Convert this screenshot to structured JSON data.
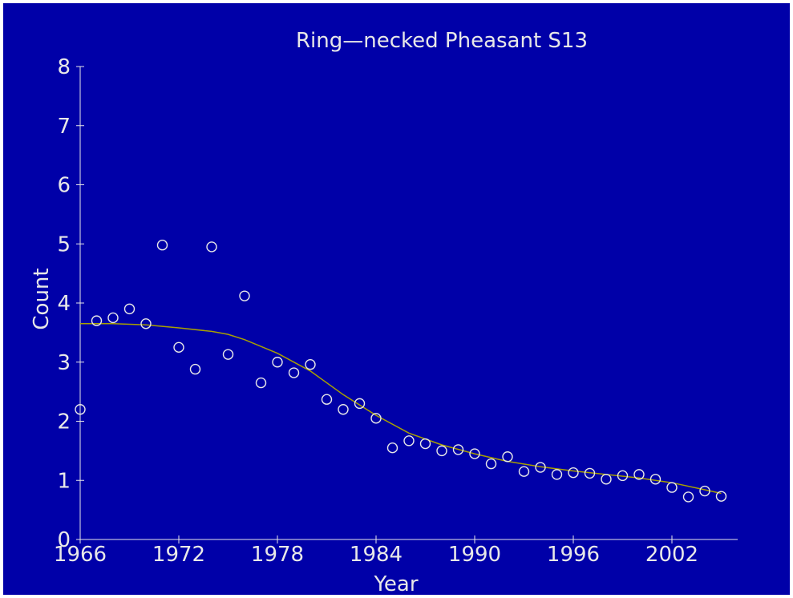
{
  "colors": {
    "background": "#0000a8",
    "foreground": "#e8e8e8",
    "trend": "#a8a000"
  },
  "chart_data": {
    "type": "scatter",
    "title": "Ring—necked Pheasant S13",
    "xlabel": "Year",
    "ylabel": "Count",
    "xlim": [
      1966,
      2006
    ],
    "ylim": [
      0,
      8
    ],
    "x_ticks": [
      1966,
      1972,
      1978,
      1984,
      1990,
      1996,
      2002
    ],
    "y_ticks": [
      0,
      1,
      2,
      3,
      4,
      5,
      6,
      7,
      8
    ],
    "grid": false,
    "legend": "none",
    "series": [
      {
        "type": "scatter",
        "marker": "open-circle",
        "x": [
          1966,
          1967,
          1968,
          1969,
          1970,
          1971,
          1972,
          1973,
          1974,
          1975,
          1976,
          1977,
          1978,
          1979,
          1980,
          1981,
          1982,
          1983,
          1984,
          1985,
          1986,
          1987,
          1988,
          1989,
          1990,
          1991,
          1992,
          1993,
          1994,
          1995,
          1996,
          1997,
          1998,
          1999,
          2000,
          2001,
          2002,
          2003,
          2004,
          2005
        ],
        "y": [
          2.2,
          3.7,
          3.75,
          3.9,
          3.65,
          4.98,
          3.25,
          2.88,
          4.95,
          3.13,
          4.12,
          2.65,
          3.0,
          2.82,
          2.96,
          2.37,
          2.2,
          2.3,
          2.05,
          1.55,
          1.67,
          1.62,
          1.5,
          1.52,
          1.45,
          1.28,
          1.4,
          1.15,
          1.22,
          1.1,
          1.13,
          1.12,
          1.02,
          1.08,
          1.1,
          1.02,
          0.88,
          0.72,
          0.82,
          0.73
        ]
      },
      {
        "type": "line",
        "x": [
          1966,
          1968,
          1970,
          1972,
          1974,
          1975,
          1976,
          1978,
          1980,
          1982,
          1984,
          1986,
          1988,
          1990,
          1992,
          1994,
          1996,
          1998,
          2000,
          2002,
          2004,
          2005
        ],
        "y": [
          3.65,
          3.65,
          3.63,
          3.58,
          3.52,
          3.47,
          3.38,
          3.15,
          2.85,
          2.45,
          2.1,
          1.8,
          1.6,
          1.45,
          1.32,
          1.23,
          1.16,
          1.1,
          1.04,
          0.96,
          0.84,
          0.78
        ]
      }
    ]
  }
}
